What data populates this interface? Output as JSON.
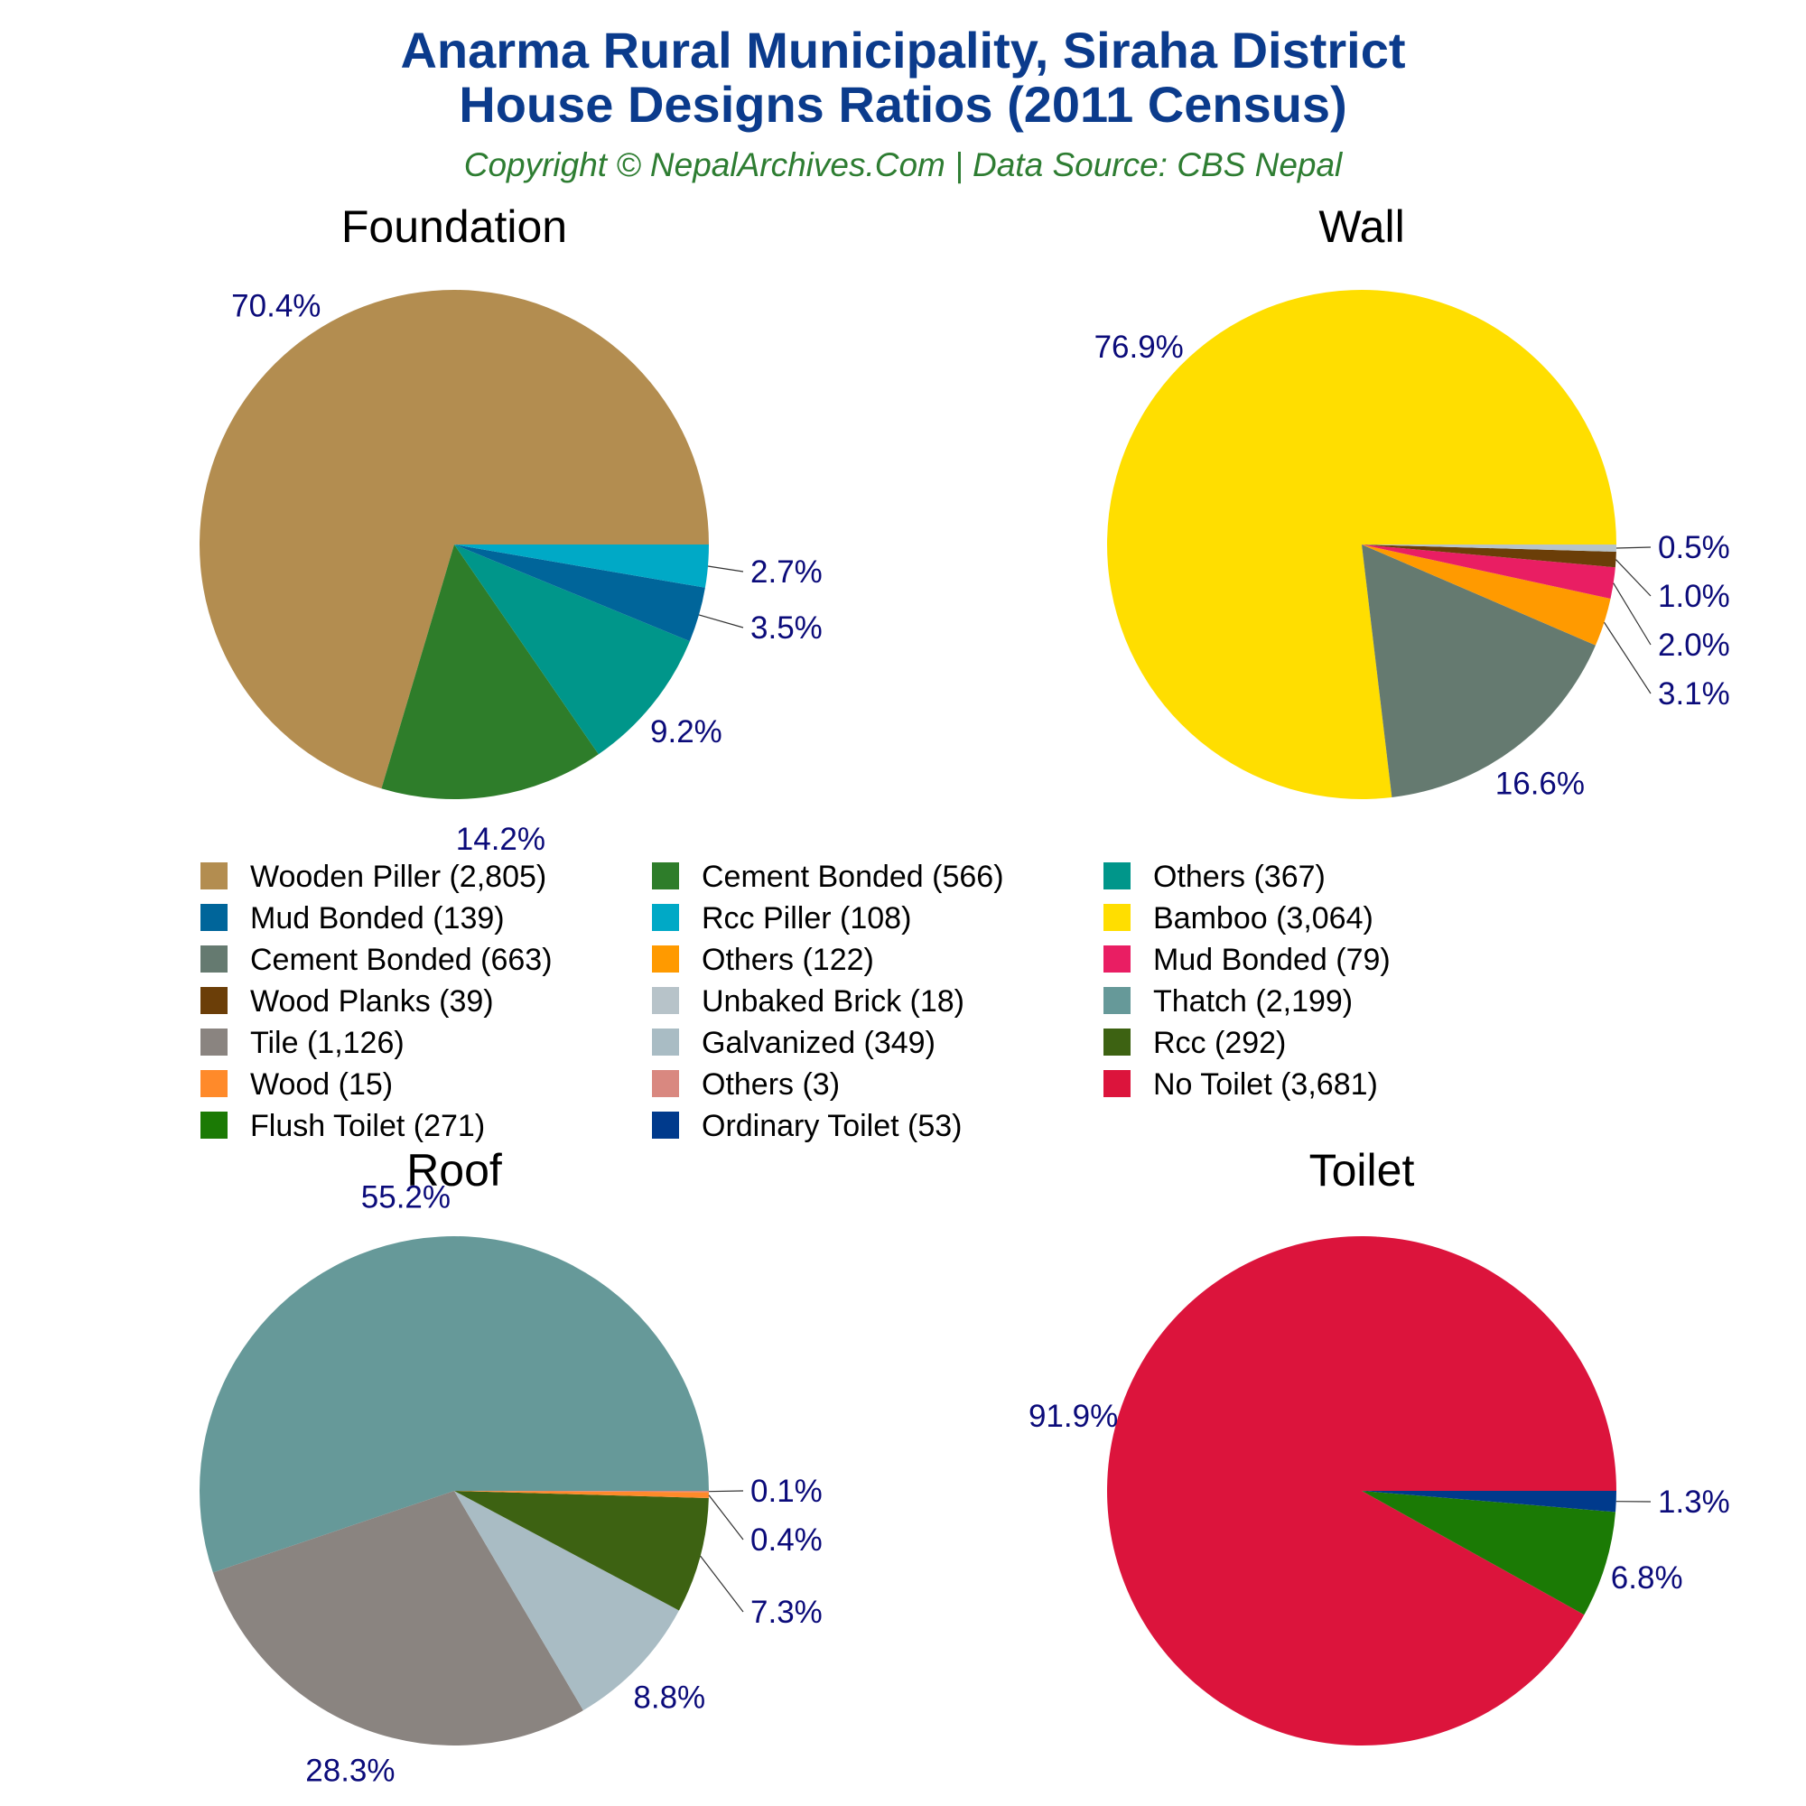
{
  "header": {
    "title_line1": "Anarma Rural Municipality, Siraha District",
    "title_line2": "House Designs Ratios (2011 Census)",
    "subtitle": "Copyright © NepalArchives.Com | Data Source: CBS Nepal"
  },
  "chart_data": [
    {
      "type": "pie",
      "title": "Foundation",
      "slices": [
        {
          "label": "Wooden Piller",
          "value": 2805,
          "pct_label": "70.4%",
          "color": "#b38d50"
        },
        {
          "label": "Cement Bonded",
          "value": 566,
          "pct_label": "14.2%",
          "color": "#2e7d2a"
        },
        {
          "label": "Others",
          "value": 367,
          "pct_label": "9.2%",
          "color": "#00968a"
        },
        {
          "label": "Mud Bonded",
          "value": 139,
          "pct_label": "3.5%",
          "color": "#00659a"
        },
        {
          "label": "Rcc Piller",
          "value": 108,
          "pct_label": "2.7%",
          "color": "#00a9c6"
        }
      ]
    },
    {
      "type": "pie",
      "title": "Wall",
      "slices": [
        {
          "label": "Bamboo",
          "value": 3064,
          "pct_label": "76.9%",
          "color": "#ffde00"
        },
        {
          "label": "Cement Bonded",
          "value": 663,
          "pct_label": "16.6%",
          "color": "#657a70"
        },
        {
          "label": "Others",
          "value": 122,
          "pct_label": "3.1%",
          "color": "#ff9a00"
        },
        {
          "label": "Mud Bonded",
          "value": 79,
          "pct_label": "2.0%",
          "color": "#e91e63"
        },
        {
          "label": "Wood Planks",
          "value": 39,
          "pct_label": "1.0%",
          "color": "#6b3e08"
        },
        {
          "label": "Unbaked Brick",
          "value": 18,
          "pct_label": "0.5%",
          "color": "#b7c3c9"
        }
      ]
    },
    {
      "type": "pie",
      "title": "Roof",
      "slices": [
        {
          "label": "Thatch",
          "value": 2199,
          "pct_label": "55.2%",
          "color": "#669999"
        },
        {
          "label": "Tile",
          "value": 1126,
          "pct_label": "28.3%",
          "color": "#8a8480"
        },
        {
          "label": "Galvanized",
          "value": 349,
          "pct_label": "8.8%",
          "color": "#a9bcc4"
        },
        {
          "label": "Rcc",
          "value": 292,
          "pct_label": "7.3%",
          "color": "#3d6212"
        },
        {
          "label": "Wood",
          "value": 15,
          "pct_label": "0.4%",
          "color": "#ff8a2a"
        },
        {
          "label": "Others",
          "value": 3,
          "pct_label": "0.1%",
          "color": "#d98880"
        }
      ]
    },
    {
      "type": "pie",
      "title": "Toilet",
      "slices": [
        {
          "label": "No Toilet",
          "value": 3681,
          "pct_label": "91.9%",
          "color": "#dc143c"
        },
        {
          "label": "Flush Toilet",
          "value": 271,
          "pct_label": "6.8%",
          "color": "#1b7a05"
        },
        {
          "label": "Ordinary Toilet",
          "value": 53,
          "pct_label": "1.3%",
          "color": "#003a8c"
        }
      ]
    }
  ],
  "legend": {
    "columns": 3,
    "items": [
      {
        "text": "Wooden Piller (2,805)",
        "color": "#b38d50"
      },
      {
        "text": "Cement Bonded (566)",
        "color": "#2e7d2a"
      },
      {
        "text": "Others (367)",
        "color": "#00968a"
      },
      {
        "text": "Mud Bonded (139)",
        "color": "#00659a"
      },
      {
        "text": "Rcc Piller (108)",
        "color": "#00a9c6"
      },
      {
        "text": "Bamboo (3,064)",
        "color": "#ffde00"
      },
      {
        "text": "Cement Bonded (663)",
        "color": "#657a70"
      },
      {
        "text": "Others (122)",
        "color": "#ff9a00"
      },
      {
        "text": "Mud Bonded (79)",
        "color": "#e91e63"
      },
      {
        "text": "Wood Planks (39)",
        "color": "#6b3e08"
      },
      {
        "text": "Unbaked Brick (18)",
        "color": "#b7c3c9"
      },
      {
        "text": "Thatch (2,199)",
        "color": "#669999"
      },
      {
        "text": "Tile (1,126)",
        "color": "#8a8480"
      },
      {
        "text": "Galvanized (349)",
        "color": "#a9bcc4"
      },
      {
        "text": "Rcc (292)",
        "color": "#3d6212"
      },
      {
        "text": "Wood (15)",
        "color": "#ff8a2a"
      },
      {
        "text": "Others (3)",
        "color": "#d98880"
      },
      {
        "text": "No Toilet (3,681)",
        "color": "#dc143c"
      },
      {
        "text": "Flush Toilet (271)",
        "color": "#1b7a05"
      },
      {
        "text": "Ordinary Toilet (53)",
        "color": "#003a8c"
      }
    ]
  }
}
